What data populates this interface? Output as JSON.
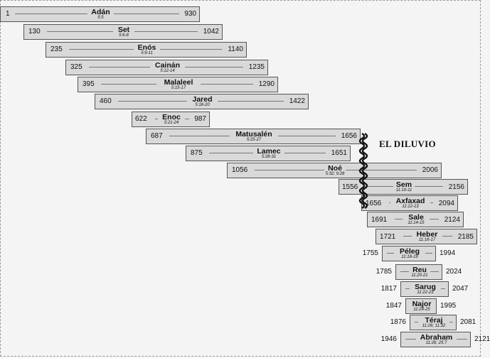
{
  "flood_label": "EL DILUVIO",
  "patriarchs": [
    {
      "name": "Adán",
      "ref": "5:5",
      "start": "1",
      "end": "930"
    },
    {
      "name": "Set",
      "ref": "5:6-8",
      "start": "130",
      "end": "1042"
    },
    {
      "name": "Enós",
      "ref": "5:9-11",
      "start": "235",
      "end": "1140"
    },
    {
      "name": "Cainán",
      "ref": "5:12-14",
      "start": "325",
      "end": "1235"
    },
    {
      "name": "Malaleel",
      "ref": "5:15-17",
      "start": "395",
      "end": "1290"
    },
    {
      "name": "Jared",
      "ref": "5:18-20",
      "start": "460",
      "end": "1422"
    },
    {
      "name": "Enoc",
      "ref": "5:21-24",
      "start": "622",
      "end": "987"
    },
    {
      "name": "Matusalén",
      "ref": "5:25-27",
      "start": "687",
      "end": "1656"
    },
    {
      "name": "Lamec",
      "ref": "5:28-31",
      "start": "875",
      "end": "1651"
    },
    {
      "name": "Noé",
      "ref": "5:32; 9:28",
      "start": "1056",
      "end": "2006"
    },
    {
      "name": "Sem",
      "ref": "11:10-11",
      "start": "1556",
      "end": "2156"
    },
    {
      "name": "Axfaxad",
      "ref": "11:12-13",
      "start": "1656",
      "end": "2094"
    },
    {
      "name": "Sale",
      "ref": "11:14-15",
      "start": "1691",
      "end": "2124"
    },
    {
      "name": "Heber",
      "ref": "11:16-17",
      "start": "1721",
      "end": "2185"
    },
    {
      "name": "Péleg",
      "ref": "11:18-19",
      "start": "1755",
      "end": "1994"
    },
    {
      "name": "Reu",
      "ref": "11:20-21",
      "start": "1785",
      "end": "2024"
    },
    {
      "name": "Sarug",
      "ref": "11:22-23",
      "start": "1817",
      "end": "2047"
    },
    {
      "name": "Najor",
      "ref": "11:24-25",
      "start": "1847",
      "end": "1995"
    },
    {
      "name": "Téraj",
      "ref": "11:26; 11:32",
      "start": "1876",
      "end": "2081"
    },
    {
      "name": "Abraham",
      "ref": "11:26; 25:7",
      "start": "1946",
      "end": "2121"
    }
  ]
}
